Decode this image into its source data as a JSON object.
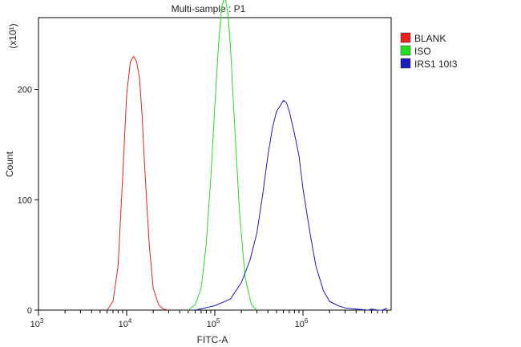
{
  "chart_data": {
    "type": "line",
    "title": "Multi-sample : P1",
    "xlabel": "FITC-A",
    "ylabel": "Count",
    "y_multiplier": "(x10¹)",
    "x_scale": "log",
    "xlim": [
      1000,
      10000000
    ],
    "ylim": [
      0,
      265
    ],
    "x_ticks": [
      {
        "value": 1000,
        "base": "10",
        "exp": "3"
      },
      {
        "value": 10000,
        "base": "10",
        "exp": "4"
      },
      {
        "value": 100000,
        "base": "10",
        "exp": "5"
      },
      {
        "value": 1000000,
        "base": "10",
        "exp": "6"
      }
    ],
    "y_ticks": [
      {
        "value": 0,
        "label": "0"
      },
      {
        "value": 100,
        "label": "100"
      },
      {
        "value": 200,
        "label": "200"
      }
    ],
    "legend_position": "top-right",
    "series": [
      {
        "name": "BLANK",
        "color": "#e8231f",
        "x": [
          6000,
          7000,
          8000,
          9000,
          10000,
          11000,
          12000,
          13000,
          14000,
          15000,
          16000,
          18000,
          20000,
          23000,
          26000,
          30000
        ],
        "values": [
          0,
          8,
          40,
          120,
          195,
          225,
          230,
          225,
          210,
          175,
          130,
          60,
          20,
          5,
          1,
          0
        ]
      },
      {
        "name": "ISO",
        "color": "#22dd22",
        "x": [
          50000,
          60000,
          70000,
          80000,
          90000,
          100000,
          110000,
          120000,
          130000,
          140000,
          150000,
          170000,
          190000,
          220000,
          260000,
          300000
        ],
        "values": [
          0,
          5,
          20,
          60,
          120,
          185,
          240,
          275,
          285,
          270,
          240,
          160,
          90,
          30,
          5,
          0
        ]
      },
      {
        "name": "IRS1 10I3",
        "color": "#1c1cbe",
        "x": [
          60000,
          100000,
          150000,
          200000,
          250000,
          300000,
          350000,
          400000,
          450000,
          500000,
          550000,
          600000,
          650000,
          700000,
          800000,
          900000,
          1000000,
          1200000,
          1400000,
          1700000,
          2000000,
          2500000,
          3000000,
          4000000,
          5500000,
          6000000,
          7000000,
          8000000,
          9000000
        ],
        "values": [
          0,
          4,
          10,
          25,
          45,
          70,
          105,
          140,
          165,
          180,
          185,
          190,
          188,
          180,
          160,
          140,
          110,
          70,
          40,
          18,
          8,
          4,
          2,
          1,
          0,
          1,
          0,
          0,
          2
        ]
      }
    ]
  }
}
